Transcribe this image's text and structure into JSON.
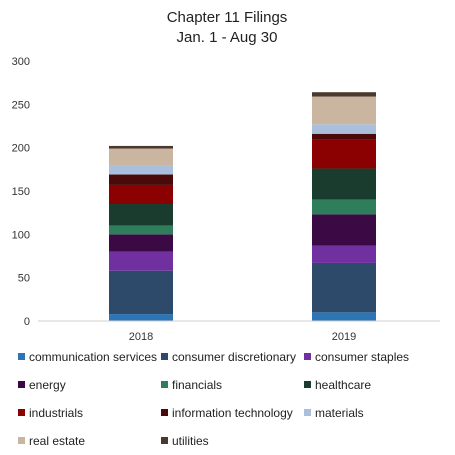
{
  "chart_data": {
    "type": "bar",
    "stacked": true,
    "title": "Chapter 11 Filings",
    "subtitle": "Jan. 1 - Aug 30",
    "categories": [
      "2018",
      "2019"
    ],
    "ylim": [
      0,
      300
    ],
    "yticks": [
      0,
      50,
      100,
      150,
      200,
      250,
      300
    ],
    "grid": false,
    "legend_position": "bottom",
    "series": [
      {
        "name": "communication services",
        "color": "#2E75B6",
        "values": [
          8,
          10
        ]
      },
      {
        "name": "consumer discretionary",
        "color": "#2E4A6B",
        "values": [
          50,
          57
        ]
      },
      {
        "name": "consumer staples",
        "color": "#7030A0",
        "values": [
          22,
          20
        ]
      },
      {
        "name": "energy",
        "color": "#3B0A45",
        "values": [
          20,
          36
        ]
      },
      {
        "name": "financials",
        "color": "#2E7D5B",
        "values": [
          10,
          17
        ]
      },
      {
        "name": "healthcare",
        "color": "#1A3C2E",
        "values": [
          25,
          36
        ]
      },
      {
        "name": "industrials",
        "color": "#8B0000",
        "values": [
          22,
          33
        ]
      },
      {
        "name": "information technology",
        "color": "#4A0A0A",
        "values": [
          12,
          7
        ]
      },
      {
        "name": "materials",
        "color": "#A9BFDB",
        "values": [
          10,
          11
        ]
      },
      {
        "name": "real estate",
        "color": "#C9B5A0",
        "values": [
          20,
          32
        ]
      },
      {
        "name": "utilities",
        "color": "#4A3A2E",
        "values": [
          3,
          5
        ]
      }
    ]
  }
}
